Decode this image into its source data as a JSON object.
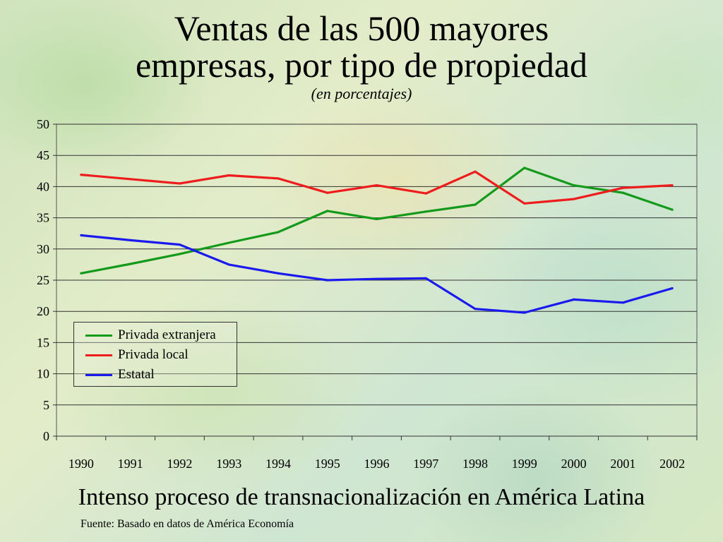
{
  "title_line1": "Ventas de las 500 mayores",
  "title_line2": "empresas, por tipo de propiedad",
  "subtitle": "(en porcentajes)",
  "footer": "Intenso proceso de transnacionalización en América Latina",
  "source": "Fuente: Basado en datos de América Economía",
  "chart_data": {
    "type": "line",
    "title": "Ventas de las 500 mayores empresas, por tipo de propiedad",
    "subtitle": "(en porcentajes)",
    "x": [
      "1990",
      "1991",
      "1992",
      "1993",
      "1994",
      "1995",
      "1996",
      "1997",
      "1998",
      "1999",
      "2000",
      "2001",
      "2002"
    ],
    "yticks": [
      "0",
      "5",
      "10",
      "15",
      "20",
      "25",
      "30",
      "35",
      "40",
      "45",
      "50"
    ],
    "ylim": [
      0,
      50
    ],
    "grid": "horizontal",
    "legend_position": "bottom-left",
    "series": [
      {
        "name": "Privada extranjera",
        "color": "#139a1b",
        "values": [
          26.1,
          27.6,
          29.2,
          31.0,
          32.7,
          36.1,
          34.8,
          36.0,
          37.1,
          43.0,
          40.2,
          39.0,
          36.3
        ]
      },
      {
        "name": "Privada local",
        "color": "#ee1c1c",
        "values": [
          41.9,
          41.2,
          40.5,
          41.8,
          41.3,
          39.0,
          40.2,
          38.9,
          42.4,
          37.3,
          38.0,
          39.8,
          40.2
        ]
      },
      {
        "name": "Estatal",
        "color": "#1a1aee",
        "values": [
          32.2,
          31.4,
          30.7,
          27.5,
          26.1,
          25.0,
          25.2,
          25.3,
          20.4,
          19.8,
          21.9,
          21.4,
          23.7
        ]
      }
    ]
  }
}
